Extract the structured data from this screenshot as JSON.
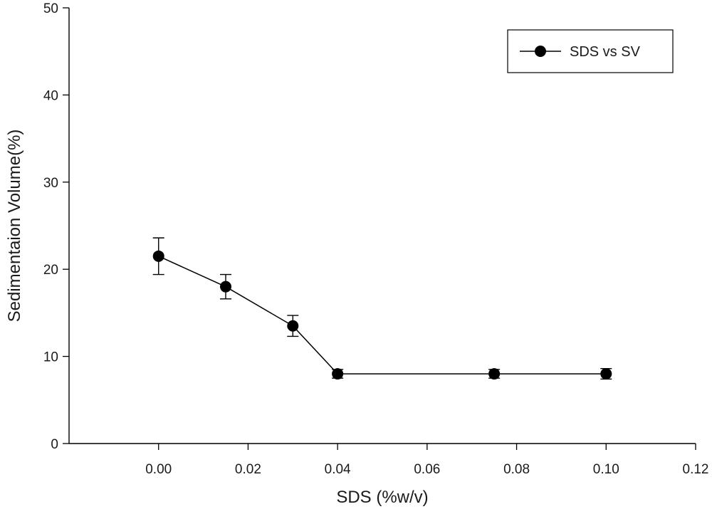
{
  "chart_data": {
    "type": "line",
    "title": "",
    "xlabel": "SDS  (%w/v)",
    "ylabel": "Sedimentaion Volume(%)",
    "xlim": [
      -0.02,
      0.12
    ],
    "ylim": [
      0,
      50
    ],
    "xticks": [
      0.0,
      0.02,
      0.04,
      0.06,
      0.08,
      0.1,
      0.12
    ],
    "xtick_labels": [
      "0.00",
      "0.02",
      "0.04",
      "0.06",
      "0.08",
      "0.10",
      "0.12"
    ],
    "yticks": [
      0,
      10,
      20,
      30,
      40,
      50
    ],
    "ytick_labels": [
      "0",
      "10",
      "20",
      "30",
      "40",
      "50"
    ],
    "grid": false,
    "legend_position": "top-right",
    "series": [
      {
        "name": "SDS vs SV",
        "color": "#000000",
        "marker": "circle-filled",
        "x": [
          0.0,
          0.015,
          0.03,
          0.04,
          0.075,
          0.1
        ],
        "y": [
          21.5,
          18.0,
          13.5,
          8.0,
          8.0,
          8.0
        ],
        "error": [
          2.1,
          1.4,
          1.2,
          0.5,
          0.5,
          0.6
        ]
      }
    ]
  }
}
